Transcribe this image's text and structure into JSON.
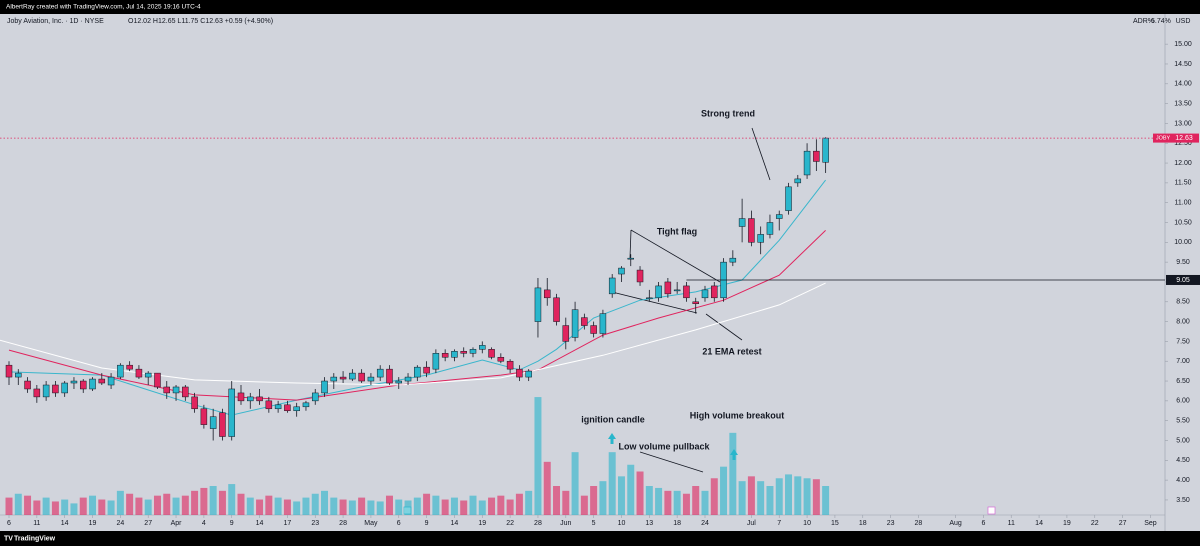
{
  "header": {
    "credit": "AlbertRay created with TradingView.com, Jul 14, 2025 19:16 UTC-4",
    "brand": "TradingView"
  },
  "chart_data": {
    "type": "candlestick",
    "symbol_line": "Joby Aviation, Inc. · 1D · NYSE",
    "ohlc_line": "O12.02 H12.65 L11.75 C12.63 +0.59 (+4.90%)",
    "adr": "ADR%",
    "adr_value": "6.74%",
    "currency": "USD",
    "symbol": "JOBY",
    "last_price": 12.63,
    "level_line": 9.05,
    "up_color": "#29b6cc",
    "down_color": "#e0245e",
    "open": [
      6.9,
      6.6,
      6.5,
      6.3,
      6.1,
      6.4,
      6.2,
      6.45,
      6.5,
      6.3,
      6.55,
      6.4,
      6.6,
      6.9,
      6.8,
      6.6,
      6.7,
      6.35,
      6.2,
      6.35,
      6.1,
      5.8,
      5.3,
      5.7,
      5.1,
      6.2,
      6.0,
      6.1,
      6.0,
      5.8,
      5.9,
      5.75,
      5.85,
      6.0,
      6.2,
      6.5,
      6.6,
      6.55,
      6.7,
      6.5,
      6.6,
      6.8,
      6.45,
      6.5,
      6.6,
      6.85,
      6.8,
      7.2,
      7.1,
      7.25,
      7.2,
      7.3,
      7.3,
      7.1,
      7.0,
      6.8,
      6.6,
      8.0,
      8.8,
      8.6,
      7.9,
      7.6,
      8.1,
      7.9,
      7.7,
      8.7,
      9.2,
      9.6,
      9.3,
      8.6,
      8.6,
      9.0,
      8.8,
      8.9,
      8.5,
      8.6,
      8.9,
      8.6,
      9.5,
      10.4,
      10.6,
      10.0,
      10.2,
      10.6,
      10.8,
      11.5,
      11.7,
      12.3,
      12.02
    ],
    "high": [
      7.0,
      6.8,
      6.6,
      6.4,
      6.5,
      6.5,
      6.5,
      6.6,
      6.55,
      6.6,
      6.7,
      6.7,
      6.95,
      7.0,
      6.9,
      6.75,
      6.7,
      6.5,
      6.4,
      6.4,
      6.2,
      5.9,
      5.8,
      5.8,
      6.5,
      6.4,
      6.2,
      6.3,
      6.1,
      6.0,
      6.0,
      5.95,
      6.0,
      6.3,
      6.6,
      6.7,
      6.75,
      6.8,
      6.8,
      6.7,
      6.9,
      6.9,
      6.6,
      6.7,
      6.9,
      7.0,
      7.3,
      7.3,
      7.3,
      7.35,
      7.35,
      7.5,
      7.35,
      7.2,
      7.05,
      6.9,
      6.8,
      9.1,
      9.1,
      8.7,
      8.1,
      8.5,
      8.2,
      8.0,
      8.3,
      9.2,
      9.4,
      9.7,
      9.4,
      8.8,
      9.0,
      9.1,
      9.0,
      9.0,
      8.6,
      8.9,
      9.0,
      9.6,
      9.8,
      11.1,
      10.8,
      10.4,
      10.7,
      10.8,
      11.5,
      11.7,
      12.5,
      12.6,
      12.65
    ],
    "low": [
      6.4,
      6.4,
      6.2,
      5.95,
      6.0,
      6.1,
      6.1,
      6.3,
      6.2,
      6.25,
      6.4,
      6.3,
      6.55,
      6.75,
      6.55,
      6.4,
      6.3,
      6.05,
      6.0,
      6.0,
      5.7,
      5.3,
      5.0,
      5.0,
      5.0,
      5.9,
      5.8,
      5.9,
      5.7,
      5.7,
      5.7,
      5.6,
      5.75,
      5.9,
      6.1,
      6.3,
      6.45,
      6.5,
      6.45,
      6.4,
      6.5,
      6.4,
      6.3,
      6.4,
      6.5,
      6.6,
      6.7,
      7.0,
      7.0,
      7.1,
      7.1,
      7.2,
      7.05,
      6.95,
      6.7,
      6.5,
      6.5,
      7.6,
      8.4,
      7.9,
      7.3,
      7.5,
      7.8,
      7.6,
      7.6,
      8.6,
      9.0,
      9.4,
      8.9,
      8.5,
      8.5,
      8.6,
      8.7,
      8.5,
      8.2,
      8.5,
      8.5,
      8.5,
      9.4,
      10.0,
      9.9,
      9.7,
      10.1,
      10.3,
      10.7,
      11.4,
      11.6,
      11.8,
      11.75
    ],
    "close": [
      6.6,
      6.7,
      6.3,
      6.1,
      6.4,
      6.2,
      6.45,
      6.5,
      6.3,
      6.55,
      6.45,
      6.6,
      6.9,
      6.8,
      6.6,
      6.7,
      6.35,
      6.2,
      6.35,
      6.1,
      5.8,
      5.4,
      5.6,
      5.1,
      6.3,
      6.0,
      6.1,
      6.0,
      5.8,
      5.9,
      5.75,
      5.85,
      5.95,
      6.2,
      6.5,
      6.6,
      6.55,
      6.7,
      6.5,
      6.6,
      6.8,
      6.45,
      6.5,
      6.6,
      6.85,
      6.7,
      7.2,
      7.1,
      7.25,
      7.2,
      7.3,
      7.4,
      7.1,
      7.0,
      6.8,
      6.6,
      6.75,
      8.85,
      8.6,
      8.0,
      7.5,
      8.3,
      7.9,
      7.7,
      8.2,
      9.1,
      9.35,
      9.6,
      9.0,
      8.6,
      8.9,
      8.7,
      8.8,
      8.6,
      8.45,
      8.8,
      8.6,
      9.5,
      9.6,
      10.6,
      10.0,
      10.2,
      10.5,
      10.7,
      11.4,
      11.6,
      12.3,
      12.04,
      12.63
    ],
    "volume": [
      18,
      22,
      20,
      15,
      18,
      14,
      16,
      12,
      18,
      20,
      16,
      15,
      25,
      22,
      18,
      16,
      20,
      22,
      18,
      20,
      25,
      28,
      30,
      25,
      32,
      22,
      18,
      16,
      20,
      18,
      16,
      14,
      18,
      22,
      25,
      18,
      16,
      15,
      18,
      15,
      14,
      20,
      16,
      15,
      18,
      22,
      20,
      16,
      18,
      15,
      20,
      15,
      18,
      20,
      16,
      22,
      25,
      122,
      55,
      30,
      25,
      65,
      20,
      30,
      35,
      65,
      40,
      52,
      45,
      30,
      28,
      25,
      25,
      22,
      30,
      25,
      38,
      50,
      85,
      35,
      40,
      35,
      30,
      38,
      42,
      40,
      38,
      37,
      30
    ],
    "volume_ylim": [
      0,
      150
    ],
    "lines": [
      {
        "color": "#3ab6cc",
        "x": [
          0,
          10,
          20,
          24,
          31,
          39,
          45,
          51,
          55,
          57,
          59,
          63,
          68,
          74,
          79,
          83,
          88
        ],
        "values": [
          6.73,
          6.65,
          5.9,
          5.64,
          6.02,
          6.4,
          6.65,
          7.03,
          6.78,
          7.0,
          7.3,
          8.09,
          8.54,
          8.75,
          9.05,
          10.05,
          11.57
        ]
      },
      {
        "color": "#e0245e",
        "x": [
          0,
          10,
          20,
          31,
          42,
          53,
          57,
          64,
          70,
          77,
          83,
          88
        ],
        "values": [
          7.28,
          6.65,
          6.15,
          6.02,
          6.4,
          6.65,
          6.78,
          7.66,
          8.09,
          8.54,
          9.17,
          10.3
        ]
      },
      {
        "color": "#ffffff",
        "x": [
          -1,
          10,
          20,
          31,
          42,
          53,
          64,
          74,
          83,
          88
        ],
        "values": [
          7.53,
          6.83,
          6.53,
          6.45,
          6.4,
          6.58,
          7.15,
          7.79,
          8.42,
          8.97
        ]
      }
    ],
    "annotations": [
      "Strong trend",
      "Tight flag",
      "21 EMA retest",
      "ignition candle",
      "High volume breakout",
      "Low volume pullback"
    ],
    "xlim": [
      -0.97,
      124.57
    ],
    "ylim": [
      3.12,
      15.66
    ],
    "xticks": [
      {
        "value": 0,
        "label": "6"
      },
      {
        "value": 3,
        "label": "11"
      },
      {
        "value": 6,
        "label": "14"
      },
      {
        "value": 9,
        "label": "19"
      },
      {
        "value": 12,
        "label": "24"
      },
      {
        "value": 15,
        "label": "27"
      },
      {
        "value": 18,
        "label": "Apr"
      },
      {
        "value": 21,
        "label": "4"
      },
      {
        "value": 24,
        "label": "9"
      },
      {
        "value": 27,
        "label": "14"
      },
      {
        "value": 30,
        "label": "17"
      },
      {
        "value": 33,
        "label": "23"
      },
      {
        "value": 36,
        "label": "28"
      },
      {
        "value": 39,
        "label": "May"
      },
      {
        "value": 42,
        "label": "6"
      },
      {
        "value": 45,
        "label": "9"
      },
      {
        "value": 48,
        "label": "14"
      },
      {
        "value": 51,
        "label": "19"
      },
      {
        "value": 54,
        "label": "22"
      },
      {
        "value": 57,
        "label": "28"
      },
      {
        "value": 60,
        "label": "Jun"
      },
      {
        "value": 63,
        "label": "5"
      },
      {
        "value": 66,
        "label": "10"
      },
      {
        "value": 69,
        "label": "13"
      },
      {
        "value": 72,
        "label": "18"
      },
      {
        "value": 75,
        "label": "24"
      },
      {
        "value": 80,
        "label": "Jul"
      },
      {
        "value": 83,
        "label": "7"
      },
      {
        "value": 86,
        "label": "10"
      },
      {
        "value": 89,
        "label": "15"
      },
      {
        "value": 92,
        "label": "18"
      },
      {
        "value": 95,
        "label": "23"
      },
      {
        "value": 98,
        "label": "28"
      },
      {
        "value": 102,
        "label": "Aug"
      },
      {
        "value": 105,
        "label": "6"
      },
      {
        "value": 108,
        "label": "11"
      },
      {
        "value": 111,
        "label": "14"
      },
      {
        "value": 114,
        "label": "19"
      },
      {
        "value": 117,
        "label": "22"
      },
      {
        "value": 120,
        "label": "27"
      },
      {
        "value": 123,
        "label": "Sep"
      }
    ],
    "yticks": [
      {
        "value": 3.5,
        "label": "3.50"
      },
      {
        "value": 4,
        "label": "4.00"
      },
      {
        "value": 4.5,
        "label": "4.50"
      },
      {
        "value": 5,
        "label": "5.00"
      },
      {
        "value": 5.5,
        "label": "5.50"
      },
      {
        "value": 6,
        "label": "6.00"
      },
      {
        "value": 6.5,
        "label": "6.50"
      },
      {
        "value": 7,
        "label": "7.00"
      },
      {
        "value": 7.5,
        "label": "7.50"
      },
      {
        "value": 8,
        "label": "8.00"
      },
      {
        "value": 8.5,
        "label": "8.50"
      },
      {
        "value": 9,
        "label": "9.00"
      },
      {
        "value": 9.5,
        "label": "9.50"
      },
      {
        "value": 10,
        "label": "10.00"
      },
      {
        "value": 10.5,
        "label": "10.50"
      },
      {
        "value": 11,
        "label": "11.00"
      },
      {
        "value": 11.5,
        "label": "11.50"
      },
      {
        "value": 12,
        "label": "12.00"
      },
      {
        "value": 12.5,
        "label": "12.50"
      },
      {
        "value": 13,
        "label": "13.00"
      },
      {
        "value": 13.5,
        "label": "13.50"
      },
      {
        "value": 14,
        "label": "14.00"
      },
      {
        "value": 14.5,
        "label": "14.50"
      },
      {
        "value": 15,
        "label": "15.00"
      }
    ]
  }
}
